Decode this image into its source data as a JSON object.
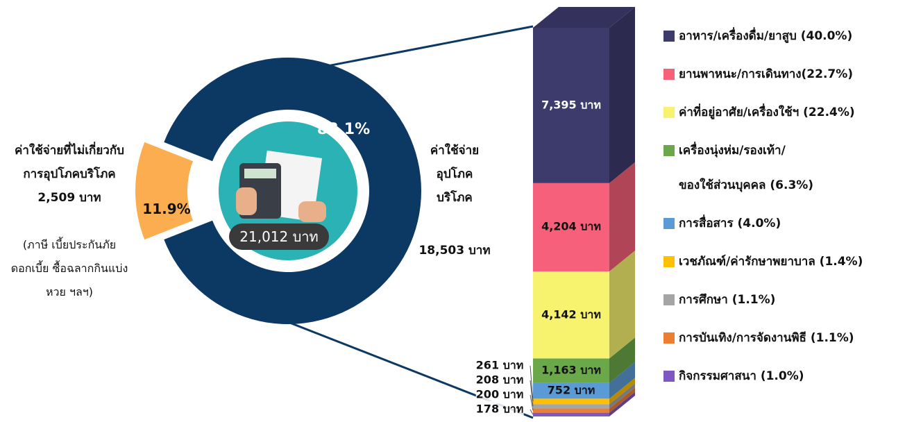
{
  "chart_data": [
    {
      "type": "donut",
      "center_label": "21,012 บาท",
      "categories": [
        "ค่าใช้จ่าย\nอุปโภค\nบริโภค",
        "ค่าใช้จ่ายที่ไม่เกี่ยวกับ\nการอุปโภคบริโภค"
      ],
      "amount_labels": [
        "18,503 บาท",
        "2,509 บาท"
      ],
      "annotation": "(ภาษี เบี้ยประกันภัย\nดอกเบี้ย ซื้อฉลากกินแบ่ง\nหวย ฯลฯ)",
      "values": [
        88.1,
        11.9
      ],
      "value_labels": [
        "88.1%",
        "11.9%"
      ],
      "colors": [
        "#0c3864",
        "#fbad4f"
      ],
      "explode": [
        false,
        true
      ]
    },
    {
      "type": "stacked_bar",
      "series": [
        {
          "name": "อาหาร/เครื่องดื่ม/ยาสูบ (40.0%)",
          "color": "#3d3b6c",
          "values": [
            7395
          ],
          "value_labels": [
            "7,395 บาท"
          ]
        },
        {
          "name": "ยานพาหนะ/การเดินทาง(22.7%)",
          "color": "#f6607a",
          "values": [
            4204
          ],
          "value_labels": [
            "4,204 บาท"
          ]
        },
        {
          "name": "ค่าที่อยู่อาศัย/เครื่องใช้ฯ (22.4%)",
          "color": "#f7f36f",
          "values": [
            4142
          ],
          "value_labels": [
            "4,142 บาท"
          ]
        },
        {
          "name": "เครื่องนุ่งห่ม/รองเท้า/\nของใช้ส่วนบุคคล (6.3%)",
          "color": "#6ba84a",
          "values": [
            1163
          ],
          "value_labels": [
            "1,163 บาท"
          ]
        },
        {
          "name": "การสื่อสาร (4.0%)",
          "color": "#5b9bd5",
          "values": [
            752
          ],
          "value_labels": [
            "752 บาท"
          ]
        },
        {
          "name": "เวชภัณฑ์/ค่ารักษาพยาบาล (1.4%)",
          "color": "#ffc000",
          "values": [
            261
          ],
          "value_labels": [
            "261 บาท"
          ]
        },
        {
          "name": "การศึกษา (1.1%)",
          "color": "#a5a5a5",
          "values": [
            208
          ],
          "value_labels": [
            "208 บาท"
          ]
        },
        {
          "name": "การบันเทิง/การจัดงานพิธี (1.1%)",
          "color": "#ed7d31",
          "values": [
            200
          ],
          "value_labels": [
            "200 บาท"
          ]
        },
        {
          "name": "กิจกรรมศาสนา (1.0%)",
          "color": "#7e57c2",
          "values": [
            178
          ],
          "value_labels": [
            "178 บาท"
          ]
        }
      ]
    }
  ]
}
